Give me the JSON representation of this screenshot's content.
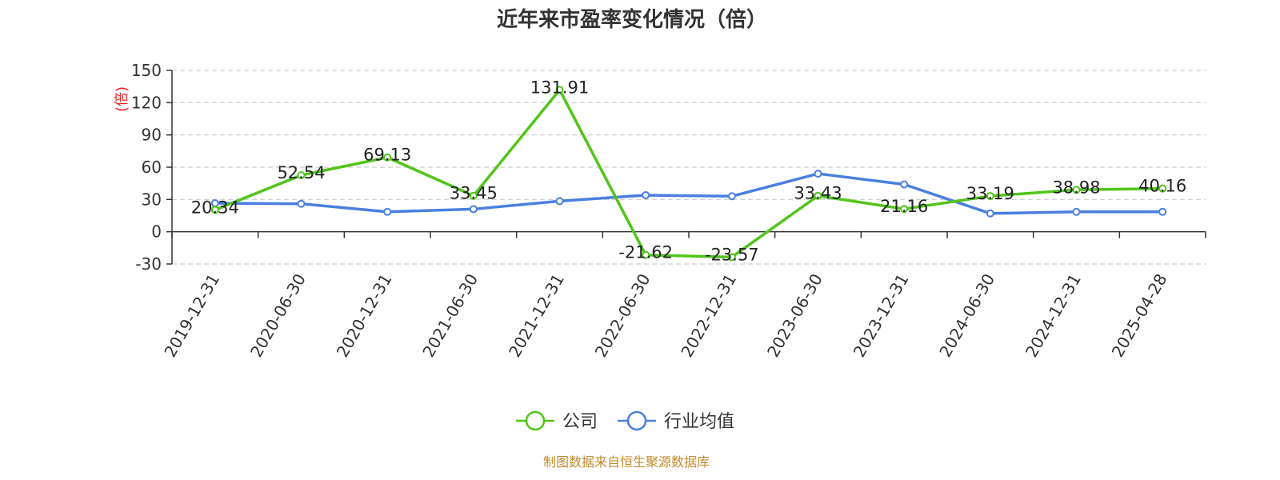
{
  "chart_data": {
    "type": "line",
    "title": "近年来市盈率变化情况（倍）",
    "ylabel": "(倍)",
    "ylim": [
      -30,
      150
    ],
    "yticks": [
      -30,
      0,
      30,
      60,
      90,
      120,
      150
    ],
    "grid": true,
    "legend_position": "bottom-center",
    "categories": [
      "2019-12-31",
      "2020-06-30",
      "2020-12-31",
      "2021-06-30",
      "2021-12-31",
      "2022-06-30",
      "2022-12-31",
      "2023-06-30",
      "2023-12-31",
      "2024-06-30",
      "2024-12-31",
      "2025-04-28"
    ],
    "series": [
      {
        "name": "公司",
        "color": "#52c41a",
        "values": [
          20.34,
          52.54,
          69.13,
          33.45,
          131.91,
          -21.62,
          -23.57,
          33.43,
          21.16,
          33.19,
          38.98,
          40.16
        ],
        "labels": [
          "20.34",
          "52.54",
          "69.13",
          "33.45",
          "131.91",
          "-21.62",
          "-23.57",
          "33.43",
          "21.16",
          "33.19",
          "38.98",
          "40.16"
        ]
      },
      {
        "name": "行业均值",
        "color": "#4a7fe0",
        "values": [
          26.5,
          26.0,
          18.5,
          21.0,
          28.5,
          34.0,
          33.0,
          54.0,
          44.0,
          17.0,
          18.5,
          18.5
        ]
      }
    ]
  },
  "source": "制图数据来自恒生聚源数据库"
}
